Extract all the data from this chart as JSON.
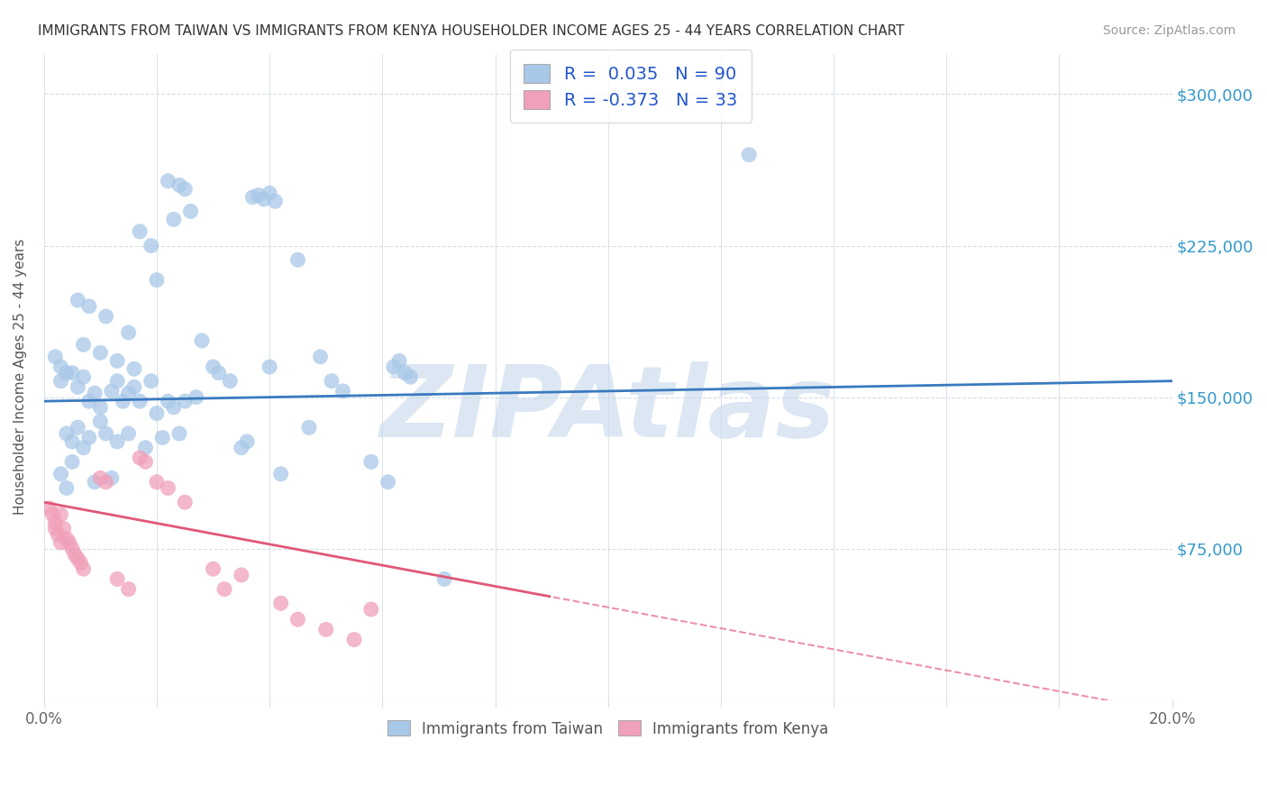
{
  "title": "IMMIGRANTS FROM TAIWAN VS IMMIGRANTS FROM KENYA HOUSEHOLDER INCOME AGES 25 - 44 YEARS CORRELATION CHART",
  "source": "Source: ZipAtlas.com",
  "ylabel": "Householder Income Ages 25 - 44 years",
  "xlim": [
    0.0,
    20.0
  ],
  "ylim": [
    0,
    320000
  ],
  "taiwan_R": 0.035,
  "taiwan_N": 90,
  "kenya_R": -0.373,
  "kenya_N": 33,
  "taiwan_color": "#a8c8e8",
  "kenya_color": "#f0a0b8",
  "taiwan_line_color": "#3a7abf",
  "kenya_line_color": "#e05878",
  "taiwan_line_intercept": 148000,
  "taiwan_line_slope": 500,
  "kenya_line_intercept": 98000,
  "kenya_line_slope": -5200,
  "kenya_solid_end": 9.0,
  "watermark": "ZIPAtlas",
  "watermark_color": "#c5d8ec",
  "background_color": "#ffffff",
  "grid_color": "#d4dde6"
}
